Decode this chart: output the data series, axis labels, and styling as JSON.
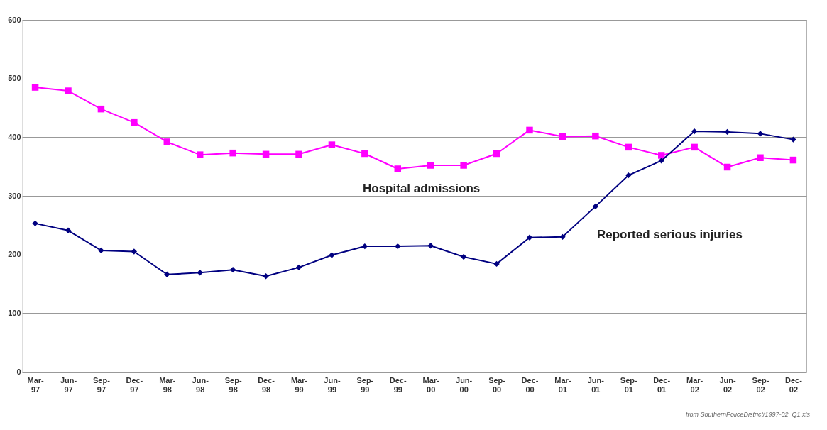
{
  "chart_data": {
    "type": "line",
    "categories": [
      "Mar-97",
      "Jun-97",
      "Sep-97",
      "Dec-97",
      "Mar-98",
      "Jun-98",
      "Sep-98",
      "Dec-98",
      "Mar-99",
      "Jun-99",
      "Sep-99",
      "Dec-99",
      "Mar-00",
      "Jun-00",
      "Sep-00",
      "Dec-00",
      "Mar-01",
      "Jun-01",
      "Sep-01",
      "Dec-01",
      "Mar-02",
      "Jun-02",
      "Sep-02",
      "Dec-02"
    ],
    "series": [
      {
        "name": "Hospital admissions",
        "color": "#ff00ff",
        "marker": "square",
        "values": [
          485,
          479,
          448,
          425,
          392,
          370,
          373,
          371,
          371,
          387,
          372,
          346,
          352,
          352,
          372,
          412,
          401,
          402,
          383,
          369,
          383,
          349,
          365,
          361
        ]
      },
      {
        "name": "Reported serious injuries",
        "color": "#000080",
        "marker": "diamond",
        "values": [
          253,
          241,
          207,
          205,
          166,
          169,
          174,
          163,
          178,
          199,
          214,
          214,
          215,
          196,
          184,
          229,
          230,
          282,
          335,
          360,
          410,
          409,
          406,
          396
        ]
      }
    ],
    "ylim": [
      0,
      600
    ],
    "yticks": [
      0,
      100,
      200,
      300,
      400,
      500,
      600
    ],
    "grid": "y",
    "legend": false,
    "annotations": [
      "from SouthernPoliceDistrict/1997-02_Q1.xls"
    ]
  }
}
